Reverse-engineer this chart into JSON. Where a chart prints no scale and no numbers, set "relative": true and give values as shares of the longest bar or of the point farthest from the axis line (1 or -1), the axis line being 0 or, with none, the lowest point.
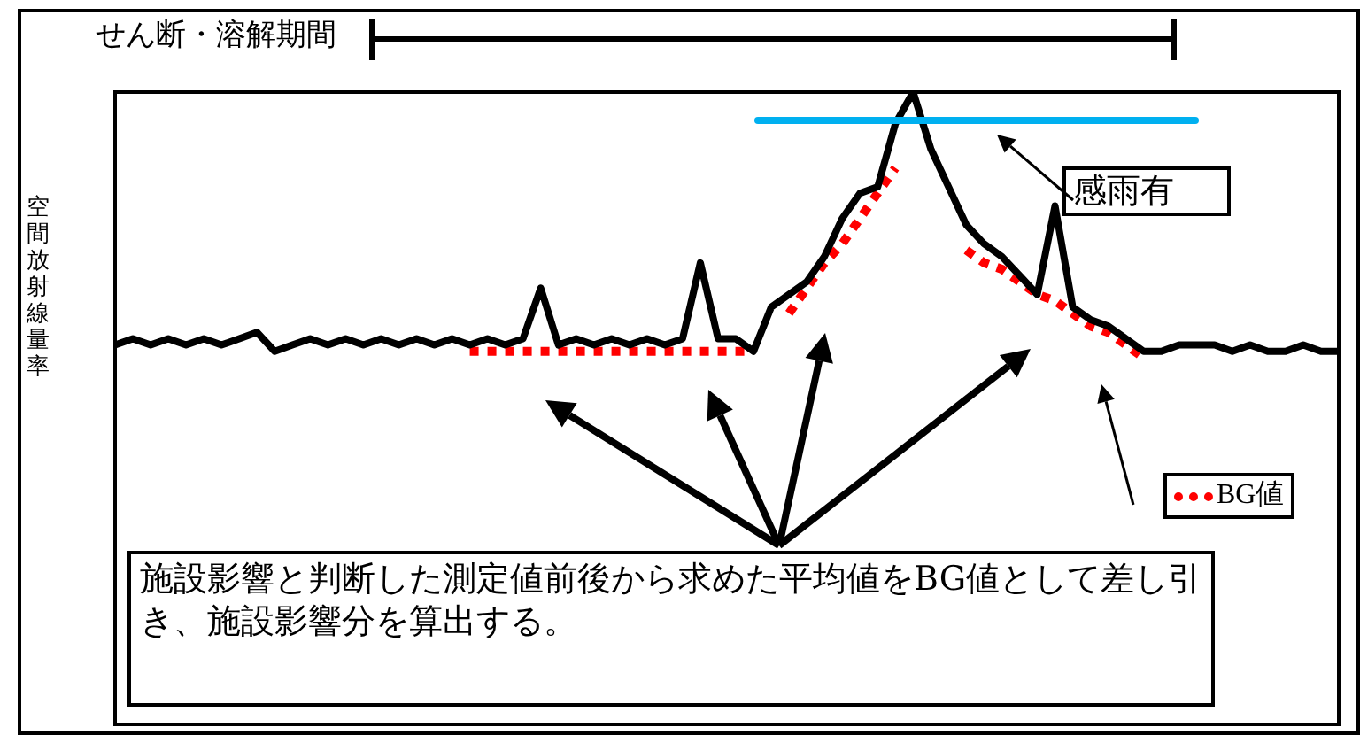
{
  "chart_data": {
    "type": "line",
    "relative": true,
    "ylabel": "空間放射線量率",
    "legend": "bottom right",
    "marker": "none",
    "annotations": [
      "せん断・溶解期間",
      "感雨有",
      "施設影響と判断した測定値前後から求めた平均値をBG値として差し引き、施設影響分を算出する。"
    ],
    "categories": [
      null,
      null,
      null,
      null,
      null,
      null,
      null,
      null,
      null,
      null,
      null,
      null,
      null,
      null,
      null,
      null,
      null,
      null,
      null,
      null,
      null,
      null,
      null,
      null,
      null,
      null,
      null,
      null,
      null,
      null,
      null,
      null,
      null,
      null,
      null,
      null,
      null,
      null,
      null,
      null,
      null,
      null,
      null,
      null,
      null,
      null,
      null,
      null,
      null,
      null,
      null,
      null,
      null,
      null,
      null,
      null,
      null,
      null,
      null,
      null,
      null,
      null,
      null,
      null,
      null,
      null,
      null,
      null,
      null,
      null
    ],
    "series": [
      {
        "color": "#000000",
        "line_style": "solid",
        "values": [
          0.6,
          0.61,
          0.6,
          0.61,
          0.6,
          0.61,
          0.6,
          0.61,
          0.62,
          0.59,
          0.6,
          0.61,
          0.6,
          0.61,
          0.6,
          0.61,
          0.6,
          0.61,
          0.6,
          0.61,
          0.6,
          0.61,
          0.6,
          0.61,
          0.69,
          0.6,
          0.61,
          0.6,
          0.61,
          0.6,
          0.61,
          0.6,
          0.61,
          0.73,
          0.61,
          0.61,
          0.59,
          0.66,
          0.68,
          0.7,
          0.74,
          0.8,
          0.84,
          0.85,
          0.95,
          1,
          0.91,
          0.85,
          0.79,
          0.76,
          0.74,
          0.71,
          0.68,
          0.82,
          0.66,
          0.64,
          0.63,
          0.61,
          0.59,
          0.59,
          0.6,
          0.6,
          0.6,
          0.59,
          0.6,
          0.59,
          0.59,
          0.6,
          0.59,
          0.59
        ]
      },
      {
        "name": "BG値",
        "color": "#ff0000",
        "line_style": "dotted",
        "values": [
          null,
          null,
          null,
          null,
          null,
          null,
          null,
          null,
          null,
          null,
          null,
          null,
          null,
          null,
          null,
          null,
          null,
          null,
          null,
          null,
          0.59,
          0.59,
          0.59,
          0.59,
          0.59,
          0.59,
          0.59,
          0.59,
          0.59,
          0.59,
          0.59,
          0.59,
          0.59,
          0.59,
          0.59,
          0.59,
          0.59,
          null,
          0.65,
          0.69,
          0.73,
          0.76,
          0.8,
          0.84,
          0.88,
          null,
          null,
          null,
          0.75,
          0.73,
          0.72,
          0.7,
          0.68,
          0.67,
          0.65,
          0.63,
          0.62,
          0.6,
          0.58,
          null,
          null,
          null,
          null,
          null,
          null,
          null,
          null,
          null,
          null,
          null
        ]
      }
    ]
  }
}
